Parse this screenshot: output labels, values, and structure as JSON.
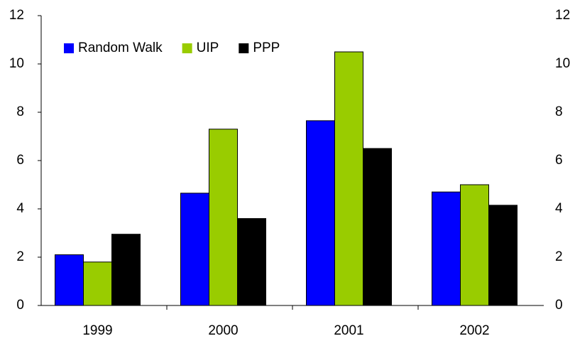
{
  "chart_data": {
    "type": "bar",
    "categories": [
      "1999",
      "2000",
      "2001",
      "2002"
    ],
    "series": [
      {
        "name": "Random Walk",
        "color": "#0000ff",
        "values": [
          2.1,
          4.65,
          7.65,
          4.7
        ]
      },
      {
        "name": "UIP",
        "color": "#99cc00",
        "values": [
          1.8,
          7.3,
          10.5,
          5.0
        ]
      },
      {
        "name": "PPP",
        "color": "#000000",
        "values": [
          2.95,
          3.6,
          6.5,
          4.15
        ]
      }
    ],
    "ylim": [
      0,
      12
    ],
    "yticks": [
      0,
      2,
      4,
      6,
      8,
      10,
      12
    ],
    "y2lim": [
      0,
      12
    ],
    "y2ticks": [
      0,
      2,
      4,
      6,
      8,
      10,
      12
    ],
    "legend": "upper left",
    "grid": false
  }
}
